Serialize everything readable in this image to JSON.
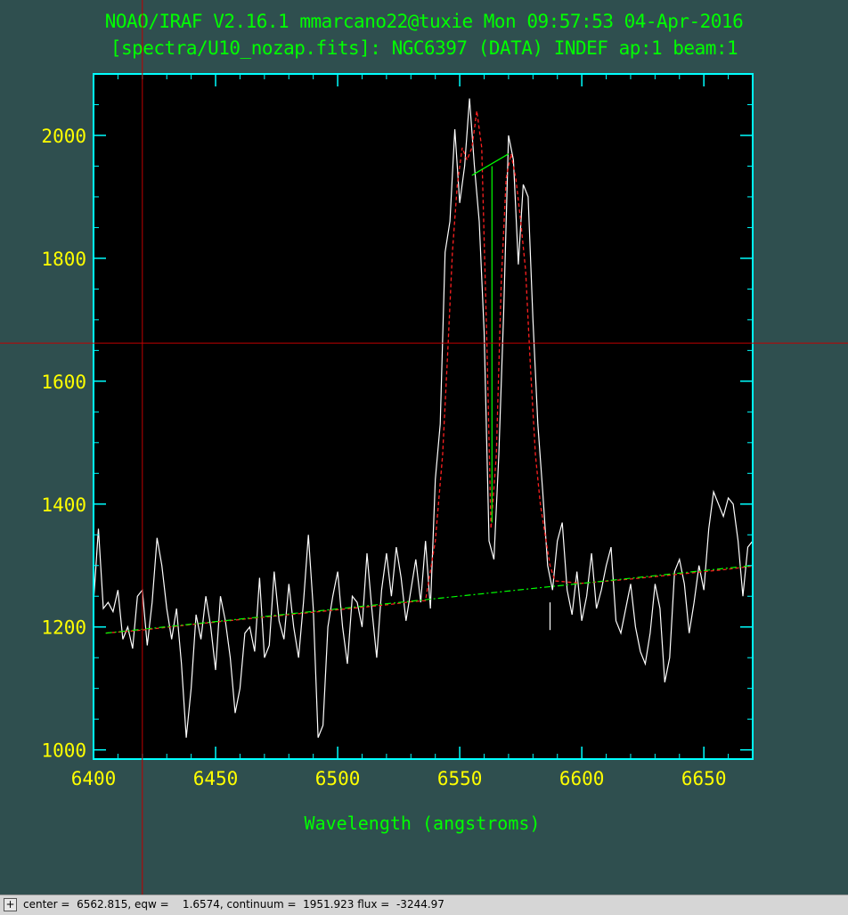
{
  "header": {
    "line1": "NOAO/IRAF V2.16.1 mmarcano22@tuxie Mon 09:57:53 04-Apr-2016",
    "line2": "[spectra/U10_nozap.fits]: NGC6397 (DATA) INDEF ap:1 beam:1"
  },
  "status": {
    "toggle": "+",
    "text": "center =  6562.815, eqw =    1.6574, continuum =  1951.923 flux =  -3244.97"
  },
  "colors": {
    "background": "#2f4f4f",
    "plot_bg": "#000000",
    "frame": "#00ffff",
    "tick_labels": "#ffff00",
    "title": "#00ff00",
    "spectrum": "#ffffff",
    "fit": "#ff2020",
    "continuum_line": "#00ff00",
    "crosshair": "#c00000"
  },
  "chart_data": {
    "type": "line",
    "title": "",
    "xlabel": "Wavelength (angstroms)",
    "ylabel": "",
    "xlim": [
      6400,
      6670
    ],
    "ylim": [
      985,
      2100
    ],
    "xticks": [
      6400,
      6450,
      6500,
      6550,
      6600,
      6650
    ],
    "yticks": [
      1000,
      1200,
      1400,
      1600,
      1800,
      2000
    ],
    "grid": false,
    "cursor": {
      "x": 6420,
      "y": 1662
    },
    "series": [
      {
        "kind": "spectrum",
        "x": [
          6400,
          6402,
          6404,
          6406,
          6408,
          6410,
          6412,
          6414,
          6416,
          6418,
          6420,
          6422,
          6424,
          6426,
          6428,
          6430,
          6432,
          6434,
          6436,
          6438,
          6440,
          6442,
          6444,
          6446,
          6448,
          6450,
          6452,
          6454,
          6456,
          6458,
          6460,
          6462,
          6464,
          6466,
          6468,
          6470,
          6472,
          6474,
          6476,
          6478,
          6480,
          6482,
          6484,
          6486,
          6488,
          6490,
          6492,
          6494,
          6496,
          6498,
          6500,
          6502,
          6504,
          6506,
          6508,
          6510,
          6512,
          6514,
          6516,
          6518,
          6520,
          6522,
          6524,
          6526,
          6528,
          6530,
          6532,
          6534,
          6536,
          6538,
          6540,
          6542,
          6544,
          6546,
          6548,
          6550,
          6552,
          6554,
          6556,
          6558,
          6560,
          6562,
          6564,
          6566,
          6568,
          6570,
          6572,
          6574,
          6576,
          6578,
          6580,
          6582,
          6584,
          6586,
          6588,
          6590,
          6592,
          6594,
          6596,
          6598,
          6600,
          6602,
          6604,
          6606,
          6608,
          6610,
          6612,
          6614,
          6616,
          6618,
          6620,
          6622,
          6624,
          6626,
          6628,
          6630,
          6632,
          6634,
          6636,
          6638,
          6640,
          6642,
          6644,
          6646,
          6648,
          6650,
          6652,
          6654,
          6656,
          6658,
          6660,
          6662,
          6664,
          6666,
          6668,
          6670
        ],
        "y": [
          1240,
          1360,
          1230,
          1240,
          1225,
          1260,
          1180,
          1200,
          1165,
          1250,
          1260,
          1170,
          1240,
          1345,
          1300,
          1230,
          1180,
          1230,
          1140,
          1020,
          1100,
          1220,
          1180,
          1250,
          1200,
          1130,
          1250,
          1210,
          1150,
          1060,
          1100,
          1190,
          1200,
          1160,
          1280,
          1150,
          1170,
          1290,
          1210,
          1180,
          1270,
          1200,
          1150,
          1240,
          1350,
          1230,
          1020,
          1040,
          1200,
          1250,
          1290,
          1200,
          1140,
          1250,
          1240,
          1200,
          1320,
          1230,
          1150,
          1260,
          1320,
          1250,
          1330,
          1280,
          1210,
          1260,
          1310,
          1240,
          1340,
          1230,
          1440,
          1530,
          1810,
          1860,
          2010,
          1890,
          1950,
          2060,
          1950,
          1860,
          1680,
          1340,
          1310,
          1480,
          1710,
          2000,
          1960,
          1790,
          1920,
          1900,
          1700,
          1530,
          1420,
          1300,
          1260,
          1340,
          1370,
          1260,
          1220,
          1290,
          1210,
          1250,
          1320,
          1230,
          1260,
          1300,
          1330,
          1210,
          1190,
          1230,
          1270,
          1200,
          1160,
          1140,
          1190,
          1270,
          1230,
          1110,
          1150,
          1290,
          1310,
          1270,
          1190,
          1240,
          1300,
          1260,
          1360,
          1420,
          1400,
          1380,
          1410,
          1400,
          1340,
          1250,
          1330,
          1340
        ]
      },
      {
        "kind": "fit",
        "x": [
          6405,
          6420,
          6440,
          6460,
          6480,
          6500,
          6520,
          6530,
          6536,
          6540,
          6543,
          6545,
          6547,
          6549,
          6551,
          6553,
          6555,
          6557,
          6559,
          6561,
          6562.8,
          6565,
          6567,
          6569,
          6571,
          6573,
          6575,
          6577,
          6579,
          6581,
          6583,
          6585,
          6587,
          6589,
          6600,
          6620,
          6640,
          6660,
          6670
        ],
        "y": [
          1190,
          1195,
          1204,
          1212,
          1220,
          1228,
          1236,
          1241,
          1243,
          1340,
          1480,
          1640,
          1810,
          1920,
          1980,
          1960,
          1980,
          2040,
          1980,
          1680,
          1360,
          1480,
          1760,
          1930,
          1970,
          1930,
          1860,
          1780,
          1620,
          1480,
          1400,
          1350,
          1300,
          1275,
          1271,
          1278,
          1286,
          1294,
          1299
        ]
      },
      {
        "kind": "continuum",
        "x": [
          6405,
          6670
        ],
        "y": [
          1190,
          1300
        ]
      },
      {
        "kind": "core-line",
        "x": [
          6563.2,
          6563.2
        ],
        "y": [
          1370,
          1950
        ]
      },
      {
        "kind": "peak-segment",
        "x": [
          6555,
          6570
        ],
        "y": [
          1935,
          1970
        ]
      },
      {
        "kind": "marker",
        "x": [
          6587,
          6587
        ],
        "y": [
          1195,
          1240
        ]
      }
    ]
  }
}
